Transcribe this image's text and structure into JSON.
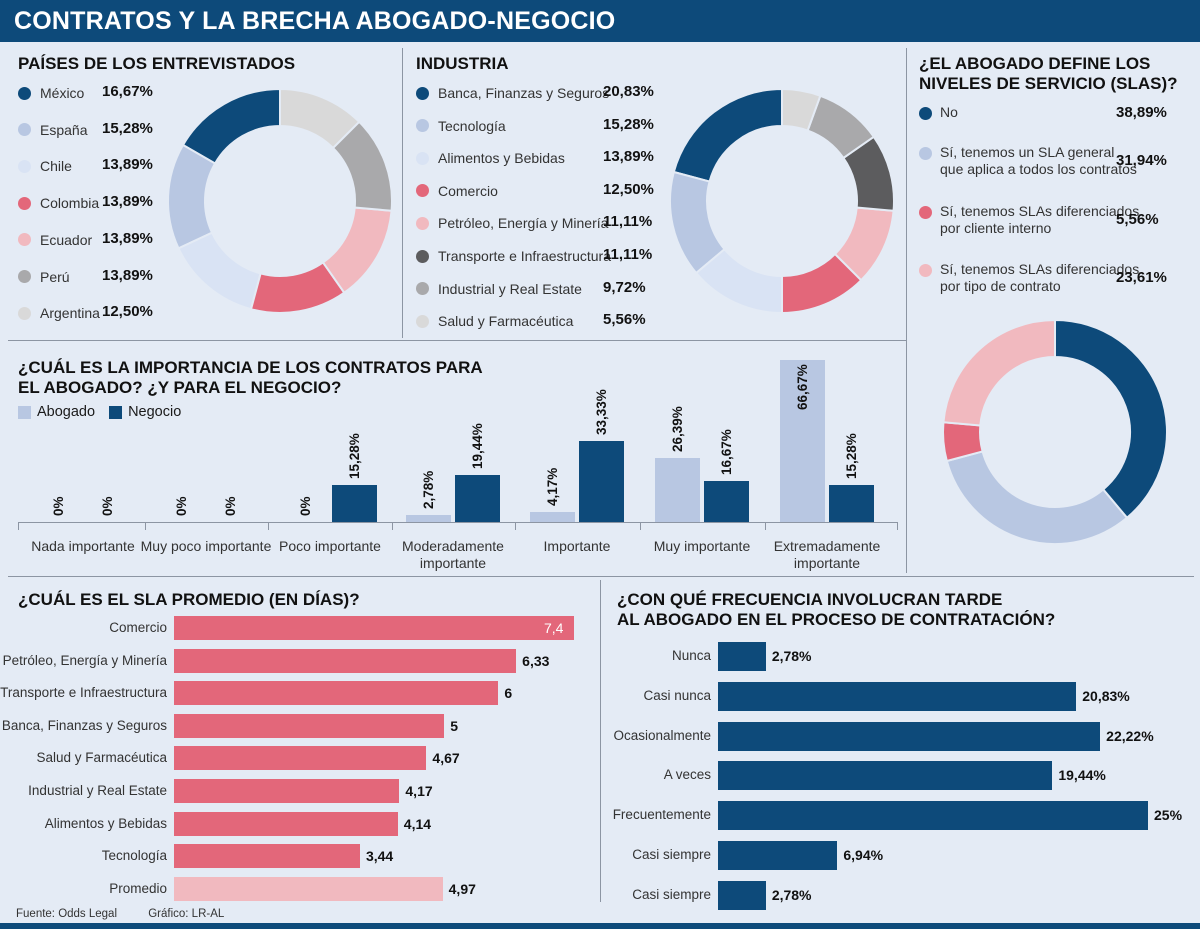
{
  "header": {
    "title": "CONTRATOS Y LA BRECHA ABOGADO-NEGOCIO"
  },
  "paises": {
    "title": "PAÍSES DE LOS ENTREVISTADOS",
    "items": [
      {
        "label": "México",
        "value": "16,67%",
        "pct": 16.67,
        "color": "#0d4a7a"
      },
      {
        "label": "España",
        "value": "15,28%",
        "pct": 15.28,
        "color": "#b8c7e2"
      },
      {
        "label": "Chile",
        "value": "13,89%",
        "pct": 13.89,
        "color": "#d9e3f4"
      },
      {
        "label": "Colombia",
        "value": "13,89%",
        "pct": 13.89,
        "color": "#e3677a"
      },
      {
        "label": "Ecuador",
        "value": "13,89%",
        "pct": 13.89,
        "color": "#f1b9bf"
      },
      {
        "label": "Perú",
        "value": "13,89%",
        "pct": 13.89,
        "color": "#a9a9ab"
      },
      {
        "label": "Argentina",
        "value": "12,50%",
        "pct": 12.5,
        "color": "#d9d9d9"
      }
    ]
  },
  "industria": {
    "title": "INDUSTRIA",
    "items": [
      {
        "label": "Banca, Finanzas y Seguros",
        "value": "20,83%",
        "pct": 20.83,
        "color": "#0d4a7a"
      },
      {
        "label": "Tecnología",
        "value": "15,28%",
        "pct": 15.28,
        "color": "#b8c7e2"
      },
      {
        "label": "Alimentos y Bebidas",
        "value": "13,89%",
        "pct": 13.89,
        "color": "#d9e3f4"
      },
      {
        "label": "Comercio",
        "value": "12,50%",
        "pct": 12.5,
        "color": "#e3677a"
      },
      {
        "label": "Petróleo, Energía y Minería",
        "value": "11,11%",
        "pct": 11.11,
        "color": "#f1b9bf"
      },
      {
        "label": "Transporte e Infraestructura",
        "value": "11,11%",
        "pct": 11.11,
        "color": "#5c5c5e"
      },
      {
        "label": "Industrial y Real Estate",
        "value": "9,72%",
        "pct": 9.72,
        "color": "#a9a9ab"
      },
      {
        "label": "Salud y Farmacéutica",
        "value": "5,56%",
        "pct": 5.56,
        "color": "#d9d9d9"
      }
    ]
  },
  "sla_define": {
    "title_line1": "¿EL ABOGADO DEFINE LOS",
    "title_line2": "NIVELES DE SERVICIO (SLAS)?",
    "items": [
      {
        "line1": "No",
        "line2": "",
        "value": "38,89%",
        "pct": 38.89,
        "color": "#0d4a7a"
      },
      {
        "line1": "Sí, tenemos un SLA general",
        "line2": "que aplica a todos los contratos",
        "value": "31,94%",
        "pct": 31.94,
        "color": "#b8c7e2"
      },
      {
        "line1": "Sí, tenemos SLAs diferenciados",
        "line2": "por cliente interno",
        "value": "5,56%",
        "pct": 5.56,
        "color": "#e3677a"
      },
      {
        "line1": "Sí, tenemos SLAs diferenciados",
        "line2": "por tipo de contrato",
        "value": "23,61%",
        "pct": 23.61,
        "color": "#f1b9bf"
      }
    ]
  },
  "importancia": {
    "title_line1": "¿CUÁL ES LA IMPORTANCIA DE LOS CONTRATOS PARA",
    "title_line2": "EL ABOGADO? ¿Y PARA EL NEGOCIO?",
    "legend": [
      {
        "label": "Abogado",
        "color": "#b8c7e2"
      },
      {
        "label": "Negocio",
        "color": "#0d4a7a"
      }
    ]
  },
  "sla_promedio": {
    "title": "¿CUÁL ES EL SLA PROMEDIO (EN DÍAS)?"
  },
  "frecuencia": {
    "title_line1": "¿CON QUÉ FRECUENCIA INVOLUCRAN TARDE",
    "title_line2": "AL ABOGADO EN EL PROCESO DE CONTRATACIÓN?"
  },
  "footer": {
    "source": "Fuente: Odds Legal",
    "credit": "Gráfico: LR-AL"
  },
  "chart_data": [
    {
      "id": "importancia",
      "type": "bar",
      "categories": [
        {
          "line1": "Nada importante",
          "line2": ""
        },
        {
          "line1": "Muy poco importante",
          "line2": ""
        },
        {
          "line1": "Poco importante",
          "line2": ""
        },
        {
          "line1": "Moderadamente",
          "line2": "importante"
        },
        {
          "line1": "Importante",
          "line2": ""
        },
        {
          "line1": "Muy importante",
          "line2": ""
        },
        {
          "line1": "Extremadamente",
          "line2": "importante"
        }
      ],
      "series": [
        {
          "name": "Abogado",
          "color": "#b8c7e2",
          "values": [
            0,
            0,
            0,
            2.78,
            4.17,
            26.39,
            66.67
          ],
          "labels": [
            "0%",
            "0%",
            "0%",
            "2,78%",
            "4,17%",
            "26,39%",
            "66,67%"
          ]
        },
        {
          "name": "Negocio",
          "color": "#0d4a7a",
          "values": [
            0,
            0,
            15.28,
            19.44,
            33.33,
            16.67,
            15.28
          ],
          "labels": [
            "0%",
            "0%",
            "15,28%",
            "19,44%",
            "33,33%",
            "16,67%",
            "15,28%"
          ]
        }
      ],
      "ylim": [
        0,
        66.67
      ]
    },
    {
      "id": "sla_promedio",
      "type": "bar",
      "orientation": "horizontal",
      "title": "¿CUÁL ES EL SLA PROMEDIO (EN DÍAS)?",
      "categories": [
        "Comercio",
        "Petróleo, Energía y Minería",
        "Transporte e Infraestructura",
        "Banca, Finanzas y Seguros",
        "Salud y Farmacéutica",
        "Industrial y Real Estate",
        "Alimentos y Bebidas",
        "Tecnología",
        "Promedio"
      ],
      "values": [
        7.4,
        6.33,
        6,
        5,
        4.67,
        4.17,
        4.14,
        3.44,
        4.97
      ],
      "labels": [
        "7,4",
        "6,33",
        "6",
        "5",
        "4,67",
        "4,17",
        "4,14",
        "3,44",
        "4,97"
      ],
      "colors": [
        "#e3677a",
        "#e3677a",
        "#e3677a",
        "#e3677a",
        "#e3677a",
        "#e3677a",
        "#e3677a",
        "#e3677a",
        "#f1b9bf"
      ],
      "xlim": [
        0,
        7.4
      ]
    },
    {
      "id": "frecuencia",
      "type": "bar",
      "orientation": "horizontal",
      "categories": [
        "Nunca",
        "Casi nunca",
        "Ocasionalmente",
        "A veces",
        "Frecuentemente",
        "Casi siempre",
        "Casi siempre"
      ],
      "values": [
        2.78,
        20.83,
        22.22,
        19.44,
        25,
        6.94,
        2.78
      ],
      "labels": [
        "2,78%",
        "20,83%",
        "22,22%",
        "19,44%",
        "25%",
        "6,94%",
        "2,78%"
      ],
      "color": "#0d4a7a",
      "xlim": [
        0,
        25
      ]
    }
  ]
}
